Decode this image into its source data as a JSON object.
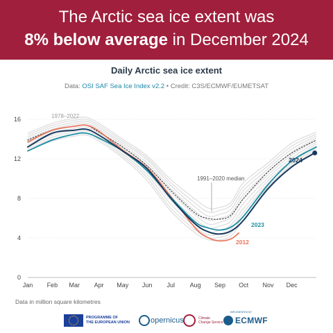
{
  "banner": {
    "line1": "The Arctic sea ice extent was",
    "line2_bold": "8% below average",
    "line2_rest": " in December 2024"
  },
  "header": {
    "title": "Daily Arctic sea ice extent",
    "data_prefix": "Data: ",
    "data_source": "OSI SAF Sea Ice Index v2.2",
    "credit": " • Credit: C3S/ECMWF/EUMETSAT"
  },
  "units_note": "Data in million square kilometres",
  "footer": {
    "eu_label_1": "PROGRAMME OF",
    "eu_label_2": "THE EUROPEAN UNION",
    "copernicus": "opernicus",
    "c3s_1": "Climate",
    "c3s_2": "Change Service",
    "ecmwf_small": "IMPLEMENTED BY",
    "ecmwf": "ECMWF"
  },
  "colors": {
    "banner": "#a01f3c",
    "series_2024": "#173a5e",
    "series_2023": "#1e8fa3",
    "series_2012": "#e8735a",
    "median": "#444444",
    "historical": "#dedede"
  },
  "chart_data": {
    "type": "line",
    "title": "Daily Arctic sea ice extent",
    "ylim": [
      0,
      16
    ],
    "yticks": [
      0,
      4,
      8,
      12,
      16
    ],
    "xlim": [
      1,
      366
    ],
    "x_ticks": [
      {
        "label": "Jan",
        "day": 1
      },
      {
        "label": "Feb",
        "day": 32
      },
      {
        "label": "Mar",
        "day": 60
      },
      {
        "label": "Apr",
        "day": 91
      },
      {
        "label": "May",
        "day": 121
      },
      {
        "label": "Jun",
        "day": 152
      },
      {
        "label": "Jul",
        "day": 182
      },
      {
        "label": "Aug",
        "day": 213
      },
      {
        "label": "Sep",
        "day": 244
      },
      {
        "label": "Oct",
        "day": 274
      },
      {
        "label": "Nov",
        "day": 305
      },
      {
        "label": "Dec",
        "day": 335
      }
    ],
    "envelope_label": "1978–2022",
    "envelope_lines": [
      {
        "x": [
          1,
          32,
          60,
          75,
          91,
          121,
          152,
          182,
          213,
          230,
          244,
          258,
          274,
          305,
          335,
          366
        ],
        "y": [
          14.6,
          15.6,
          16.1,
          16.2,
          15.6,
          14.0,
          12.3,
          9.9,
          7.9,
          7.0,
          7.1,
          7.6,
          9.6,
          11.6,
          13.6,
          14.7
        ]
      },
      {
        "x": [
          1,
          32,
          60,
          75,
          91,
          121,
          152,
          182,
          213,
          230,
          244,
          258,
          274,
          305,
          335,
          366
        ],
        "y": [
          14.4,
          15.4,
          15.9,
          16.0,
          15.4,
          13.8,
          12.1,
          9.6,
          7.5,
          6.6,
          6.8,
          7.3,
          9.2,
          11.3,
          13.3,
          14.5
        ]
      },
      {
        "x": [
          1,
          32,
          60,
          75,
          91,
          121,
          152,
          182,
          213,
          230,
          244,
          258,
          274,
          305,
          335,
          366
        ],
        "y": [
          14.2,
          15.2,
          15.7,
          15.8,
          15.2,
          13.6,
          11.9,
          9.3,
          7.1,
          6.2,
          6.4,
          6.9,
          8.8,
          11.0,
          13.0,
          14.3
        ]
      },
      {
        "x": [
          1,
          32,
          60,
          75,
          91,
          121,
          152,
          182,
          213,
          230,
          244,
          258,
          274,
          305,
          335,
          366
        ],
        "y": [
          14.0,
          15.0,
          15.5,
          15.6,
          15.0,
          13.4,
          11.6,
          9.0,
          6.7,
          5.8,
          6.0,
          6.5,
          8.4,
          10.7,
          12.7,
          14.1
        ]
      },
      {
        "x": [
          1,
          32,
          60,
          75,
          91,
          121,
          152,
          182,
          213,
          230,
          244,
          258,
          274,
          305,
          335,
          366
        ],
        "y": [
          13.8,
          14.8,
          15.3,
          15.4,
          14.8,
          13.1,
          11.3,
          8.6,
          6.3,
          5.4,
          5.6,
          6.1,
          8.0,
          10.4,
          12.4,
          13.9
        ]
      },
      {
        "x": [
          1,
          32,
          60,
          75,
          91,
          121,
          152,
          182,
          213,
          230,
          244,
          258,
          274,
          305,
          335,
          366
        ],
        "y": [
          13.6,
          14.6,
          15.1,
          15.2,
          14.6,
          12.9,
          11.0,
          8.2,
          5.9,
          5.0,
          5.2,
          5.7,
          7.5,
          10.1,
          12.1,
          13.7
        ]
      },
      {
        "x": [
          1,
          32,
          60,
          75,
          91,
          121,
          152,
          182,
          213,
          230,
          244,
          258,
          274,
          305,
          335,
          366
        ],
        "y": [
          13.4,
          14.4,
          14.9,
          15.0,
          14.4,
          12.7,
          10.7,
          7.8,
          5.5,
          4.6,
          4.8,
          5.3,
          7.0,
          9.8,
          11.8,
          13.5
        ]
      },
      {
        "x": [
          1,
          32,
          60,
          75,
          91,
          121,
          152,
          182,
          213,
          230,
          244,
          258,
          274,
          305,
          335,
          366
        ],
        "y": [
          13.2,
          14.2,
          14.7,
          14.8,
          14.2,
          12.5,
          10.4,
          7.4,
          5.1,
          4.3,
          4.4,
          4.9,
          6.6,
          9.5,
          11.6,
          13.3
        ]
      },
      {
        "x": [
          1,
          32,
          60,
          75,
          91,
          121,
          152,
          182,
          213,
          230,
          244,
          258,
          274,
          305,
          335,
          366
        ],
        "y": [
          13.0,
          14.0,
          14.5,
          14.6,
          14.0,
          12.3,
          10.1,
          7.0,
          4.8,
          4.0,
          4.1,
          4.5,
          6.2,
          9.2,
          11.4,
          13.1
        ]
      },
      {
        "x": [
          1,
          32,
          60,
          75,
          91,
          121,
          152,
          182,
          213,
          230,
          244,
          258,
          274,
          305,
          335,
          366
        ],
        "y": [
          12.8,
          13.8,
          14.3,
          14.4,
          13.8,
          12.1,
          9.8,
          6.7,
          4.5,
          3.8,
          3.8,
          4.2,
          5.8,
          8.9,
          11.2,
          12.9
        ]
      }
    ],
    "series": [
      {
        "name": "1991–2020 median",
        "style": "dotted",
        "x": [
          1,
          32,
          60,
          75,
          91,
          121,
          152,
          182,
          213,
          228,
          244,
          258,
          274,
          305,
          335,
          366
        ],
        "y": [
          13.9,
          14.9,
          15.3,
          15.4,
          14.7,
          13.2,
          11.3,
          8.8,
          6.5,
          6.0,
          5.9,
          6.3,
          8.0,
          10.7,
          12.6,
          13.9
        ]
      },
      {
        "name": "2012",
        "x": [
          1,
          32,
          60,
          75,
          91,
          121,
          152,
          182,
          213,
          230,
          244,
          258,
          268
        ],
        "y": [
          13.7,
          14.9,
          15.3,
          15.4,
          14.8,
          12.9,
          11.1,
          8.2,
          5.0,
          4.0,
          3.7,
          3.9,
          4.5
        ]
      },
      {
        "name": "2023",
        "x": [
          1,
          32,
          60,
          75,
          91,
          121,
          152,
          182,
          213,
          230,
          244,
          258,
          274,
          305,
          335,
          366
        ],
        "y": [
          12.8,
          13.9,
          14.5,
          14.6,
          14.1,
          12.8,
          10.8,
          8.1,
          5.6,
          5.0,
          4.8,
          5.1,
          6.2,
          9.4,
          11.8,
          13.2
        ]
      },
      {
        "name": "2024",
        "x": [
          1,
          32,
          60,
          75,
          91,
          121,
          152,
          182,
          213,
          230,
          244,
          258,
          274,
          305,
          335,
          364
        ],
        "y": [
          13.2,
          14.6,
          14.9,
          15.0,
          14.4,
          12.8,
          11.0,
          8.0,
          5.4,
          4.6,
          4.4,
          4.7,
          5.8,
          9.0,
          11.2,
          12.6
        ]
      }
    ]
  }
}
